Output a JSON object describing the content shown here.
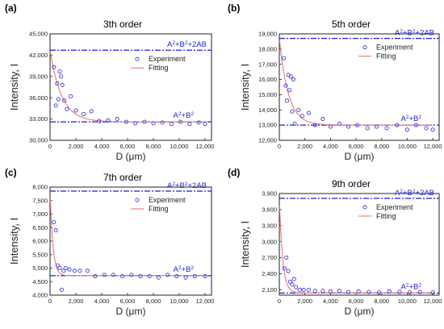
{
  "figure": {
    "x_unit_label": "D (μm)",
    "y_label": "Intensity, I"
  },
  "legend": {
    "experiment": "Experiment",
    "fitting": "Fitting"
  },
  "colors": {
    "experiment": "#3b3bd6",
    "fitting": "#e8787a",
    "reference_lines": "#1e1ed2",
    "axis": "#222222"
  },
  "chart_data": [
    {
      "type": "scatter",
      "panel_label": "(a)",
      "title": "3th order",
      "xlabel": "D (μm)",
      "ylabel": "Intensity, I",
      "xlim": [
        0,
        12500
      ],
      "ylim": [
        30000,
        45000
      ],
      "xticks": [
        0,
        2000,
        4000,
        6000,
        8000,
        10000,
        12000
      ],
      "xtick_labels": [
        "0",
        "2,000",
        "4,000",
        "6,000",
        "8,000",
        "10,000",
        "12,000"
      ],
      "yticks": [
        30000,
        33000,
        36000,
        39000,
        42000,
        45000
      ],
      "ytick_labels": [
        "30,000",
        "33,000",
        "36,000",
        "39,000",
        "42,000",
        "45,000"
      ],
      "upper_line": {
        "value": 42700,
        "label_base": "A",
        "label_mid": "+B",
        "label_end": "+2AB",
        "label_sup1": "2",
        "label_sup2": "2"
      },
      "lower_line": {
        "value": 32600,
        "label_base": "A",
        "label_mid": "+B",
        "label_sup1": "2",
        "label_sup2": "2"
      },
      "series": [
        {
          "name": "Experiment",
          "kind": "scatter",
          "x": [
            300,
            450,
            550,
            650,
            750,
            850,
            950,
            1100,
            1300,
            1600,
            2000,
            2600,
            3200,
            3800,
            4500,
            5200,
            5900,
            6600,
            7300,
            8000,
            8700,
            9400,
            10100,
            10800,
            11500,
            12000
          ],
          "y": [
            40300,
            34900,
            38000,
            35800,
            39700,
            39000,
            37800,
            35600,
            34400,
            36200,
            34200,
            33700,
            34100,
            32700,
            32800,
            33000,
            32600,
            32400,
            32600,
            32400,
            32500,
            32300,
            32600,
            32300,
            32500,
            32300
          ]
        },
        {
          "name": "Fitting",
          "kind": "line",
          "start": 42700,
          "asymptote": 32600,
          "decay": 900
        }
      ]
    },
    {
      "type": "scatter",
      "panel_label": "(b)",
      "title": "5th order",
      "xlabel": "D (μm)",
      "ylabel": "Intensity, I",
      "xlim": [
        0,
        12500
      ],
      "ylim": [
        12000,
        19000
      ],
      "xticks": [
        0,
        2000,
        4000,
        6000,
        8000,
        10000,
        12000
      ],
      "xtick_labels": [
        "0",
        "2,000",
        "4,000",
        "6,000",
        "8,000",
        "10,000",
        "12,000"
      ],
      "yticks": [
        12000,
        13000,
        14000,
        15000,
        16000,
        17000,
        18000,
        19000
      ],
      "ytick_labels": [
        "12,000",
        "13,000",
        "14,000",
        "15,000",
        "16,000",
        "17,000",
        "18,000",
        "19,000"
      ],
      "upper_line": {
        "value": 18700,
        "label_base": "A",
        "label_mid": "+B",
        "label_end": "+2AB",
        "label_sup1": "2",
        "label_sup2": "2"
      },
      "lower_line": {
        "value": 13000,
        "label_base": "A",
        "label_mid": "+B",
        "label_sup1": "2",
        "label_sup2": "2"
      },
      "series": [
        {
          "name": "Experiment",
          "kind": "scatter",
          "x": [
            350,
            500,
            600,
            700,
            800,
            900,
            1000,
            1100,
            1200,
            1500,
            1800,
            2300,
            2800,
            3400,
            4000,
            4700,
            5400,
            6100,
            6900,
            7600,
            8400,
            9200,
            10000,
            10700,
            11500,
            12000
          ],
          "y": [
            17400,
            15600,
            14600,
            16300,
            15300,
            16200,
            13900,
            16000,
            13100,
            14000,
            13600,
            13800,
            13000,
            13400,
            12900,
            13100,
            12900,
            13000,
            12800,
            12900,
            12800,
            13000,
            12700,
            13000,
            12800,
            12700
          ]
        },
        {
          "name": "Fitting",
          "kind": "line",
          "start": 18700,
          "asymptote": 13000,
          "decay": 700
        }
      ]
    },
    {
      "type": "scatter",
      "panel_label": "(c)",
      "title": "7th order",
      "xlabel": "D (μm)",
      "ylabel": "Intensity, I",
      "xlim": [
        0,
        12500
      ],
      "ylim": [
        4000,
        8000
      ],
      "xticks": [
        0,
        2000,
        4000,
        6000,
        8000,
        10000,
        12000
      ],
      "xtick_labels": [
        "0",
        "2,000",
        "4,000",
        "6,000",
        "8,000",
        "10,000",
        "12,000"
      ],
      "yticks": [
        4000,
        4500,
        5000,
        5500,
        6000,
        6500,
        7000,
        7500,
        8000
      ],
      "ytick_labels": [
        "4,000",
        "4,500",
        "5,000",
        "5,500",
        "6,000",
        "6,500",
        "7,000",
        "7,500",
        "8,000"
      ],
      "upper_line": {
        "value": 7850,
        "label_base": "A",
        "label_mid": "+B",
        "label_end": "+2AB",
        "label_sup1": "2",
        "label_sup2": "2"
      },
      "lower_line": {
        "value": 4720,
        "label_base": "A",
        "label_mid": "+B",
        "label_sup1": "2",
        "label_sup2": "2"
      },
      "series": [
        {
          "name": "Experiment",
          "kind": "scatter",
          "x": [
            300,
            450,
            600,
            750,
            900,
            1050,
            1200,
            1500,
            1900,
            2300,
            2900,
            3500,
            4200,
            4900,
            5600,
            6300,
            7000,
            7700,
            8400,
            9100,
            9800,
            10500,
            11200,
            12000
          ],
          "y": [
            6700,
            6400,
            5100,
            5000,
            4200,
            4900,
            5000,
            4950,
            4900,
            4900,
            4900,
            4700,
            4750,
            4750,
            4700,
            4750,
            4700,
            4700,
            4650,
            4750,
            4700,
            4650,
            4700,
            4700
          ]
        },
        {
          "name": "Fitting",
          "kind": "line",
          "start": 7850,
          "asymptote": 4720,
          "decay": 220
        }
      ]
    },
    {
      "type": "scatter",
      "panel_label": "(d)",
      "title": "9th order",
      "xlabel": "D (μm)",
      "ylabel": "Intensity, I",
      "xlim": [
        0,
        12500
      ],
      "ylim": [
        2000,
        3900
      ],
      "xticks": [
        0,
        2000,
        4000,
        6000,
        8000,
        10000,
        12000
      ],
      "xtick_labels": [
        "0",
        "2,000",
        "4,000",
        "6,000",
        "8,000",
        "10,000",
        "12,000"
      ],
      "yticks": [
        2100,
        2400,
        2700,
        3000,
        3300,
        3600,
        3900
      ],
      "ytick_labels": [
        "2,100",
        "2,400",
        "2,700",
        "3,000",
        "3,300",
        "3,600",
        "3,900"
      ],
      "upper_line": {
        "value": 3810,
        "label_base": "A",
        "label_mid": "+B",
        "label_end": "+2AB",
        "label_sup1": "2",
        "label_sup2": "2"
      },
      "lower_line": {
        "value": 2040,
        "label_base": "A",
        "label_mid": "+B",
        "label_sup1": "2",
        "label_sup2": "2"
      },
      "series": [
        {
          "name": "Experiment",
          "kind": "scatter",
          "x": [
            400,
            550,
            700,
            850,
            1000,
            1150,
            1300,
            1600,
            1900,
            2300,
            2800,
            3400,
            4000,
            4700,
            5400,
            6200,
            7000,
            7800,
            8600,
            9400,
            10200,
            11000,
            12000
          ],
          "y": [
            2500,
            2700,
            2450,
            2250,
            2200,
            2300,
            2150,
            2100,
            2100,
            2100,
            2080,
            2080,
            2070,
            2080,
            2060,
            2070,
            2060,
            2050,
            2070,
            2060,
            2050,
            2060,
            2050
          ]
        },
        {
          "name": "Fitting",
          "kind": "line",
          "start": 3810,
          "asymptote": 2040,
          "decay": 260
        }
      ]
    }
  ]
}
